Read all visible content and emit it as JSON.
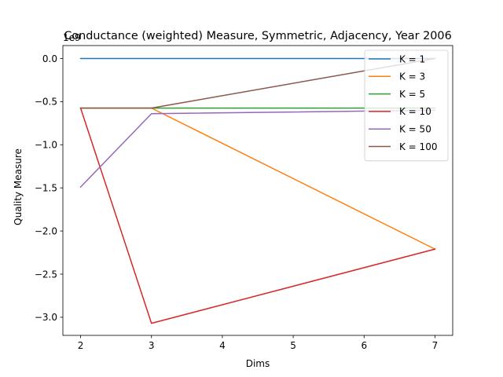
{
  "chart_data": {
    "type": "line",
    "title": "Conductance (weighted) Measure, Symmetric, Adjacency, Year 2006",
    "xlabel": "Dims",
    "ylabel": "Quality Measure",
    "offset_label": "1e9",
    "xlim": [
      1.75,
      7.25
    ],
    "ylim": [
      -3.21,
      0.15
    ],
    "xticks": [
      2,
      3,
      4,
      5,
      6,
      7
    ],
    "xtick_labels": [
      "2",
      "3",
      "4",
      "5",
      "6",
      "7"
    ],
    "yticks": [
      0.0,
      -0.5,
      -1.0,
      -1.5,
      -2.0,
      -2.5,
      -3.0
    ],
    "ytick_labels": [
      "0.0",
      "−0.5",
      "−1.0",
      "−1.5",
      "−2.0",
      "−2.5",
      "−3.0"
    ],
    "grid": false,
    "legend_position": "top-right",
    "x": [
      2,
      3,
      7
    ],
    "series": [
      {
        "name": "K = 1",
        "color": "#1f77b4",
        "values": [
          0.0,
          0.0,
          0.0
        ]
      },
      {
        "name": "K = 3",
        "color": "#ff7f0e",
        "values": [
          -0.575,
          -0.575,
          -2.21
        ]
      },
      {
        "name": "K = 5",
        "color": "#2ca02c",
        "values": [
          -0.575,
          -0.575,
          -0.575
        ]
      },
      {
        "name": "K = 10",
        "color": "#d62728",
        "values": [
          -0.575,
          -3.07,
          -2.21
        ]
      },
      {
        "name": "K = 50",
        "color": "#9467bd",
        "values": [
          -1.49,
          -0.64,
          -0.6
        ]
      },
      {
        "name": "K = 100",
        "color": "#8c564b",
        "values": [
          -0.575,
          -0.575,
          0.0
        ]
      }
    ]
  }
}
